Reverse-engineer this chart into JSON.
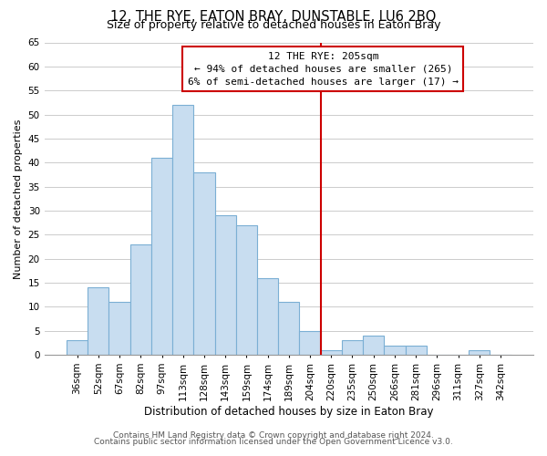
{
  "title": "12, THE RYE, EATON BRAY, DUNSTABLE, LU6 2BQ",
  "subtitle": "Size of property relative to detached houses in Eaton Bray",
  "xlabel": "Distribution of detached houses by size in Eaton Bray",
  "ylabel": "Number of detached properties",
  "bin_labels": [
    "36sqm",
    "52sqm",
    "67sqm",
    "82sqm",
    "97sqm",
    "113sqm",
    "128sqm",
    "143sqm",
    "159sqm",
    "174sqm",
    "189sqm",
    "204sqm",
    "220sqm",
    "235sqm",
    "250sqm",
    "266sqm",
    "281sqm",
    "296sqm",
    "311sqm",
    "327sqm",
    "342sqm"
  ],
  "bar_heights": [
    3,
    14,
    11,
    23,
    41,
    52,
    38,
    29,
    27,
    16,
    11,
    5,
    1,
    3,
    4,
    2,
    2,
    0,
    0,
    1,
    0
  ],
  "bar_color": "#c8ddf0",
  "bar_edge_color": "#7bafd4",
  "vline_color": "#cc0000",
  "ylim": [
    0,
    65
  ],
  "yticks": [
    0,
    5,
    10,
    15,
    20,
    25,
    30,
    35,
    40,
    45,
    50,
    55,
    60,
    65
  ],
  "annotation_title": "12 THE RYE: 205sqm",
  "annotation_line1": "← 94% of detached houses are smaller (265)",
  "annotation_line2": "6% of semi-detached houses are larger (17) →",
  "footer_line1": "Contains HM Land Registry data © Crown copyright and database right 2024.",
  "footer_line2": "Contains public sector information licensed under the Open Government Licence v3.0.",
  "background_color": "#ffffff",
  "grid_color": "#cccccc",
  "title_fontsize": 10.5,
  "subtitle_fontsize": 9,
  "annotation_fontsize": 8,
  "ylabel_fontsize": 8,
  "xlabel_fontsize": 8.5,
  "tick_fontsize": 7.5,
  "footer_fontsize": 6.5
}
